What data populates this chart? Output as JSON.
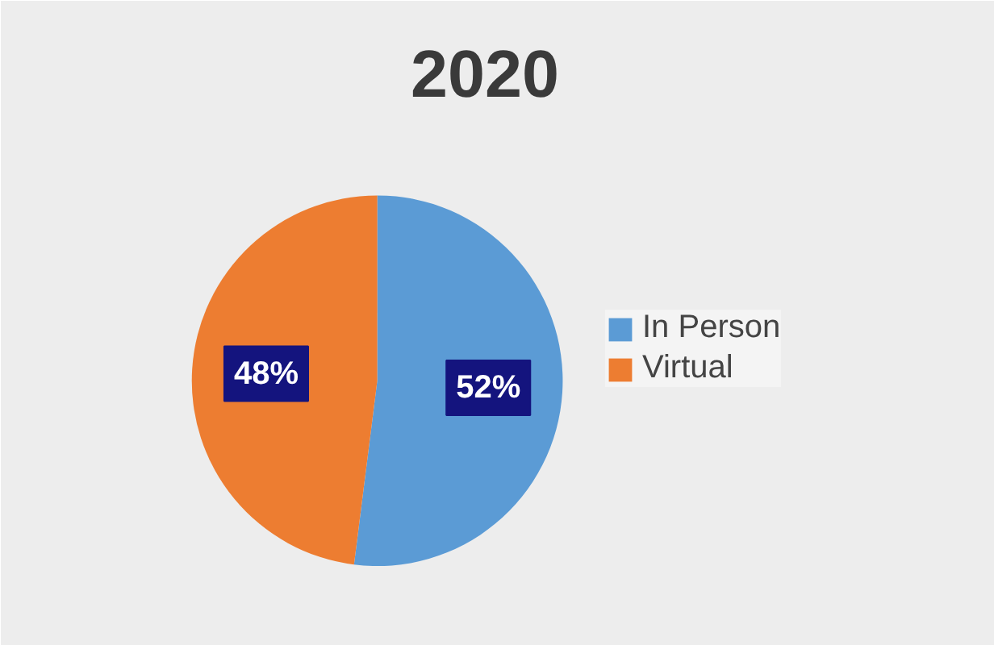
{
  "chart_data": {
    "type": "pie",
    "title": "2020",
    "categories": [
      "In Person",
      "Virtual"
    ],
    "values": [
      52,
      48
    ],
    "colors": [
      "#5b9bd5",
      "#ed7d31"
    ],
    "value_labels": [
      "52%",
      "48%"
    ],
    "legend": "right"
  }
}
